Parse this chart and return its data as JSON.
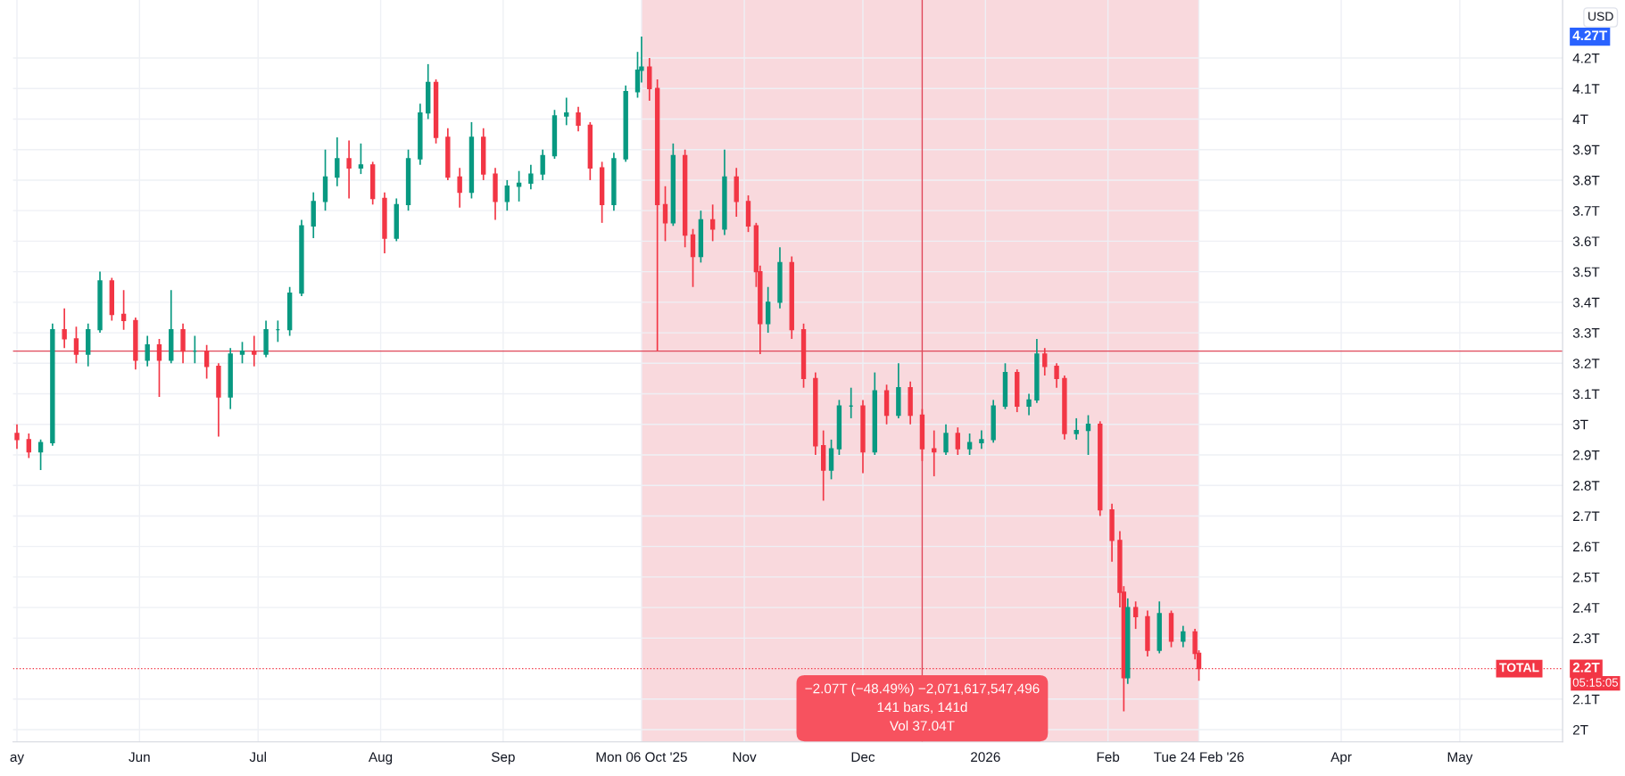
{
  "chart_data": {
    "type": "candlestick",
    "x": [
      "2025-05-01",
      "2025-05-04",
      "2025-05-07",
      "2025-05-10",
      "2025-05-13",
      "2025-05-16",
      "2025-05-19",
      "2025-05-22",
      "2025-05-25",
      "2025-05-28",
      "2025-05-31",
      "2025-06-03",
      "2025-06-06",
      "2025-06-09",
      "2025-06-12",
      "2025-06-15",
      "2025-06-18",
      "2025-06-21",
      "2025-06-24",
      "2025-06-27",
      "2025-06-30",
      "2025-07-03",
      "2025-07-06",
      "2025-07-09",
      "2025-07-12",
      "2025-07-15",
      "2025-07-18",
      "2025-07-21",
      "2025-07-24",
      "2025-07-27",
      "2025-07-30",
      "2025-08-02",
      "2025-08-05",
      "2025-08-08",
      "2025-08-11",
      "2025-08-13",
      "2025-08-15",
      "2025-08-18",
      "2025-08-21",
      "2025-08-24",
      "2025-08-27",
      "2025-08-30",
      "2025-09-02",
      "2025-09-05",
      "2025-09-08",
      "2025-09-11",
      "2025-09-14",
      "2025-09-17",
      "2025-09-20",
      "2025-09-23",
      "2025-09-26",
      "2025-09-29",
      "2025-10-02",
      "2025-10-05",
      "2025-10-06",
      "2025-10-08",
      "2025-10-10",
      "2025-10-12",
      "2025-10-14",
      "2025-10-17",
      "2025-10-19",
      "2025-10-21",
      "2025-10-24",
      "2025-10-27",
      "2025-10-30",
      "2025-11-02",
      "2025-11-04",
      "2025-11-05",
      "2025-11-07",
      "2025-11-10",
      "2025-11-13",
      "2025-11-16",
      "2025-11-19",
      "2025-11-21",
      "2025-11-23",
      "2025-11-25",
      "2025-11-28",
      "2025-12-01",
      "2025-12-04",
      "2025-12-07",
      "2025-12-10",
      "2025-12-13",
      "2025-12-16",
      "2025-12-19",
      "2025-12-22",
      "2025-12-25",
      "2025-12-28",
      "2025-12-31",
      "2026-01-03",
      "2026-01-06",
      "2026-01-09",
      "2026-01-12",
      "2026-01-14",
      "2026-01-16",
      "2026-01-19",
      "2026-01-21",
      "2026-01-24",
      "2026-01-27",
      "2026-01-30",
      "2026-02-02",
      "2026-02-04",
      "2026-02-05",
      "2026-02-06",
      "2026-02-08",
      "2026-02-11",
      "2026-02-14",
      "2026-02-17",
      "2026-02-20",
      "2026-02-23",
      "2026-02-24"
    ],
    "ohlc": [
      [
        2.97,
        3.0,
        2.92,
        2.95
      ],
      [
        2.95,
        2.97,
        2.89,
        2.91
      ],
      [
        2.91,
        2.95,
        2.85,
        2.94
      ],
      [
        2.94,
        3.33,
        2.93,
        3.31
      ],
      [
        3.31,
        3.38,
        3.25,
        3.28
      ],
      [
        3.28,
        3.32,
        3.2,
        3.23
      ],
      [
        3.23,
        3.33,
        3.19,
        3.31
      ],
      [
        3.31,
        3.5,
        3.3,
        3.47
      ],
      [
        3.47,
        3.48,
        3.34,
        3.36
      ],
      [
        3.36,
        3.44,
        3.31,
        3.34
      ],
      [
        3.34,
        3.35,
        3.18,
        3.21
      ],
      [
        3.21,
        3.29,
        3.19,
        3.26
      ],
      [
        3.26,
        3.28,
        3.09,
        3.21
      ],
      [
        3.21,
        3.44,
        3.2,
        3.31
      ],
      [
        3.31,
        3.33,
        3.2,
        3.24
      ],
      [
        3.24,
        3.29,
        3.2,
        3.24
      ],
      [
        3.24,
        3.26,
        3.15,
        3.19
      ],
      [
        3.19,
        3.2,
        2.96,
        3.09
      ],
      [
        3.09,
        3.25,
        3.05,
        3.23
      ],
      [
        3.23,
        3.27,
        3.2,
        3.24
      ],
      [
        3.24,
        3.29,
        3.19,
        3.23
      ],
      [
        3.23,
        3.34,
        3.22,
        3.31
      ],
      [
        3.31,
        3.34,
        3.27,
        3.31
      ],
      [
        3.31,
        3.45,
        3.29,
        3.43
      ],
      [
        3.43,
        3.67,
        3.42,
        3.65
      ],
      [
        3.65,
        3.76,
        3.61,
        3.73
      ],
      [
        3.73,
        3.9,
        3.7,
        3.81
      ],
      [
        3.81,
        3.94,
        3.78,
        3.87
      ],
      [
        3.87,
        3.93,
        3.74,
        3.84
      ],
      [
        3.84,
        3.92,
        3.82,
        3.85
      ],
      [
        3.85,
        3.86,
        3.72,
        3.74
      ],
      [
        3.74,
        3.76,
        3.56,
        3.61
      ],
      [
        3.61,
        3.74,
        3.6,
        3.72
      ],
      [
        3.72,
        3.9,
        3.7,
        3.87
      ],
      [
        3.87,
        4.05,
        3.85,
        4.02
      ],
      [
        4.02,
        4.18,
        4.0,
        4.12
      ],
      [
        4.12,
        4.13,
        3.92,
        3.94
      ],
      [
        3.94,
        3.97,
        3.8,
        3.81
      ],
      [
        3.81,
        3.84,
        3.71,
        3.76
      ],
      [
        3.76,
        3.99,
        3.74,
        3.94
      ],
      [
        3.94,
        3.97,
        3.8,
        3.82
      ],
      [
        3.82,
        3.84,
        3.67,
        3.73
      ],
      [
        3.73,
        3.8,
        3.7,
        3.78
      ],
      [
        3.78,
        3.83,
        3.73,
        3.79
      ],
      [
        3.79,
        3.85,
        3.77,
        3.82
      ],
      [
        3.82,
        3.9,
        3.8,
        3.88
      ],
      [
        3.88,
        4.03,
        3.87,
        4.01
      ],
      [
        4.01,
        4.07,
        3.98,
        4.02
      ],
      [
        4.02,
        4.04,
        3.96,
        3.98
      ],
      [
        3.98,
        3.99,
        3.8,
        3.84
      ],
      [
        3.84,
        3.86,
        3.66,
        3.72
      ],
      [
        3.72,
        3.89,
        3.7,
        3.87
      ],
      [
        3.87,
        4.11,
        3.86,
        4.09
      ],
      [
        4.09,
        4.22,
        4.07,
        4.16
      ],
      [
        4.16,
        4.27,
        4.12,
        4.17
      ],
      [
        4.17,
        4.2,
        4.06,
        4.1
      ],
      [
        4.1,
        4.13,
        3.24,
        3.72
      ],
      [
        3.72,
        3.78,
        3.6,
        3.66
      ],
      [
        3.66,
        3.92,
        3.65,
        3.88
      ],
      [
        3.88,
        3.9,
        3.58,
        3.62
      ],
      [
        3.62,
        3.64,
        3.45,
        3.55
      ],
      [
        3.55,
        3.7,
        3.53,
        3.67
      ],
      [
        3.67,
        3.72,
        3.6,
        3.64
      ],
      [
        3.64,
        3.9,
        3.62,
        3.81
      ],
      [
        3.81,
        3.84,
        3.68,
        3.73
      ],
      [
        3.73,
        3.75,
        3.63,
        3.65
      ],
      [
        3.65,
        3.66,
        3.45,
        3.5
      ],
      [
        3.5,
        3.52,
        3.23,
        3.33
      ],
      [
        3.33,
        3.45,
        3.3,
        3.4
      ],
      [
        3.4,
        3.58,
        3.38,
        3.53
      ],
      [
        3.53,
        3.55,
        3.28,
        3.31
      ],
      [
        3.31,
        3.33,
        3.12,
        3.15
      ],
      [
        3.15,
        3.17,
        2.9,
        2.93
      ],
      [
        2.93,
        2.98,
        2.75,
        2.85
      ],
      [
        2.85,
        2.95,
        2.82,
        2.92
      ],
      [
        2.92,
        3.08,
        2.9,
        3.06
      ],
      [
        3.06,
        3.12,
        3.02,
        3.06
      ],
      [
        3.06,
        3.08,
        2.84,
        2.91
      ],
      [
        2.91,
        3.17,
        2.9,
        3.11
      ],
      [
        3.11,
        3.13,
        3.0,
        3.03
      ],
      [
        3.03,
        3.2,
        3.02,
        3.12
      ],
      [
        3.12,
        3.14,
        3.0,
        3.03
      ],
      [
        3.03,
        3.05,
        2.88,
        2.92
      ],
      [
        2.92,
        2.98,
        2.83,
        2.91
      ],
      [
        2.91,
        3.0,
        2.9,
        2.97
      ],
      [
        2.97,
        2.99,
        2.9,
        2.92
      ],
      [
        2.92,
        2.97,
        2.9,
        2.94
      ],
      [
        2.94,
        2.98,
        2.92,
        2.95
      ],
      [
        2.95,
        3.08,
        2.94,
        3.06
      ],
      [
        3.06,
        3.2,
        3.05,
        3.17
      ],
      [
        3.17,
        3.18,
        3.04,
        3.06
      ],
      [
        3.06,
        3.1,
        3.03,
        3.08
      ],
      [
        3.08,
        3.28,
        3.07,
        3.23
      ],
      [
        3.23,
        3.25,
        3.16,
        3.19
      ],
      [
        3.19,
        3.2,
        3.12,
        3.15
      ],
      [
        3.15,
        3.16,
        2.95,
        2.97
      ],
      [
        2.97,
        3.02,
        2.95,
        2.98
      ],
      [
        2.98,
        3.03,
        2.9,
        3.0
      ],
      [
        3.0,
        3.01,
        2.7,
        2.72
      ],
      [
        2.72,
        2.74,
        2.55,
        2.62
      ],
      [
        2.62,
        2.65,
        2.4,
        2.45
      ],
      [
        2.45,
        2.47,
        2.06,
        2.17
      ],
      [
        2.17,
        2.43,
        2.15,
        2.4
      ],
      [
        2.4,
        2.42,
        2.33,
        2.37
      ],
      [
        2.37,
        2.39,
        2.24,
        2.26
      ],
      [
        2.26,
        2.42,
        2.25,
        2.38
      ],
      [
        2.38,
        2.39,
        2.27,
        2.29
      ],
      [
        2.29,
        2.34,
        2.27,
        2.32
      ],
      [
        2.32,
        2.33,
        2.23,
        2.25
      ],
      [
        2.25,
        2.26,
        2.16,
        2.2
      ]
    ],
    "xlim": [
      "2025-04-30",
      "2026-05-27"
    ],
    "xticks": [
      {
        "value": "2025-05-01",
        "label": "ay"
      },
      {
        "value": "2025-06-01",
        "label": "Jun"
      },
      {
        "value": "2025-07-01",
        "label": "Jul"
      },
      {
        "value": "2025-08-01",
        "label": "Aug"
      },
      {
        "value": "2025-09-01",
        "label": "Sep"
      },
      {
        "value": "2025-10-06",
        "label": "Mon 06 Oct '25"
      },
      {
        "value": "2025-11-01",
        "label": "Nov"
      },
      {
        "value": "2025-12-01",
        "label": "Dec"
      },
      {
        "value": "2026-01-01",
        "label": "2026"
      },
      {
        "value": "2026-02-01",
        "label": "Feb"
      },
      {
        "value": "2026-02-24",
        "label": "Tue 24 Feb '26"
      },
      {
        "value": "2026-04-01",
        "label": "Apr"
      },
      {
        "value": "2026-05-01",
        "label": "May"
      }
    ],
    "ylim": [
      1.96,
      4.39
    ],
    "yticks": [
      {
        "value": 2,
        "label": "2T"
      },
      {
        "value": 2.1,
        "label": "2.1T"
      },
      {
        "value": 2.3,
        "label": "2.3T"
      },
      {
        "value": 2.4,
        "label": "2.4T"
      },
      {
        "value": 2.5,
        "label": "2.5T"
      },
      {
        "value": 2.6,
        "label": "2.6T"
      },
      {
        "value": 2.7,
        "label": "2.7T"
      },
      {
        "value": 2.8,
        "label": "2.8T"
      },
      {
        "value": 2.9,
        "label": "2.9T"
      },
      {
        "value": 3,
        "label": "3T"
      },
      {
        "value": 3.1,
        "label": "3.1T"
      },
      {
        "value": 3.2,
        "label": "3.2T"
      },
      {
        "value": 3.3,
        "label": "3.3T"
      },
      {
        "value": 3.4,
        "label": "3.4T"
      },
      {
        "value": 3.5,
        "label": "3.5T"
      },
      {
        "value": 3.6,
        "label": "3.6T"
      },
      {
        "value": 3.7,
        "label": "3.7T"
      },
      {
        "value": 3.8,
        "label": "3.8T"
      },
      {
        "value": 3.9,
        "label": "3.9T"
      },
      {
        "value": 4,
        "label": "4T"
      },
      {
        "value": 4.1,
        "label": "4.1T"
      },
      {
        "value": 4.2,
        "label": "4.2T"
      }
    ],
    "grid": true,
    "bands": [
      {
        "axis": "x",
        "from": "2025-10-06",
        "to": "2026-02-24",
        "color": "#f7c9cf"
      }
    ],
    "ref_lines": [
      {
        "axis": "y",
        "value": 2.2,
        "label": "TOTAL",
        "color": "#f23645",
        "line_style": "dotted"
      },
      {
        "axis": "x",
        "value": "2025-12-16",
        "color": "#e0485a",
        "line_style": "solid"
      },
      {
        "axis": "y",
        "value": 3.24,
        "color": "#e0485a",
        "line_style": "solid"
      }
    ],
    "annotations": [
      "USD",
      "4.27T",
      "2.2T",
      "05:15:05",
      {
        "text": "−2.07T (−48.49%) −2,071,617,547,496",
        "x": "2025-12-16",
        "y": 2.07
      },
      "141 bars, 141d",
      "Vol 37.04T"
    ]
  }
}
